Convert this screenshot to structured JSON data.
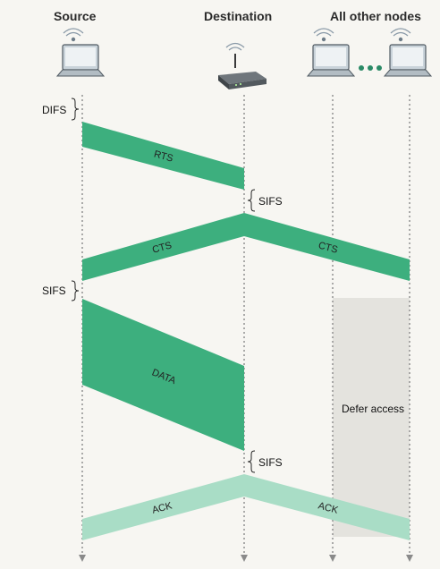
{
  "headers": {
    "source": "Source",
    "destination": "Destination",
    "others": "All other nodes"
  },
  "intervals": {
    "difs": "DIFS",
    "sifs_1": "SIFS",
    "sifs_2": "SIFS",
    "sifs_3": "SIFS"
  },
  "frames": {
    "rts": "RTS",
    "cts_source": "CTS",
    "cts_others": "CTS",
    "data": "DATA",
    "ack_source": "ACK",
    "ack_others": "ACK"
  },
  "defer_label": "Defer access",
  "icons": {
    "source": "laptop-icon",
    "destination": "access-point-icon",
    "others": "laptop-icon",
    "ellipsis": "ellipsis-icon"
  },
  "colors": {
    "frame": "#3daf7e",
    "ack_frame": "#a9ddc6",
    "defer_region": "#e4e3de",
    "timeline": "#8a8a8a"
  }
}
